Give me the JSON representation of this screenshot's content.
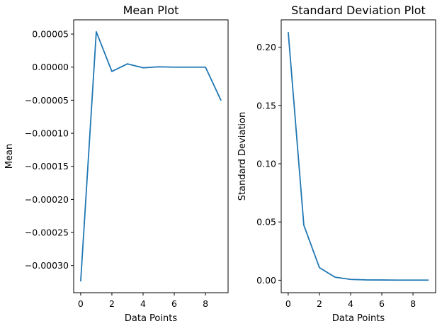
{
  "chart_data": [
    {
      "type": "line",
      "title": "Mean Plot",
      "xlabel": "Data Points",
      "ylabel": "Mean",
      "xlim": [
        -0.45,
        9.45
      ],
      "ylim": [
        -0.000341,
        7.15e-05
      ],
      "xticks": [
        0,
        2,
        4,
        6,
        8
      ],
      "xtick_labels": [
        "0",
        "2",
        "4",
        "6",
        "8"
      ],
      "yticks": [
        5e-05,
        0,
        -5e-05,
        -0.0001,
        -0.00015,
        -0.0002,
        -0.00025,
        -0.0003
      ],
      "ytick_labels": [
        "0.00005",
        "0.00000",
        "−0.00005",
        "−0.00010",
        "−0.00015",
        "−0.00020",
        "−0.00025",
        "−0.00030"
      ],
      "grid": false,
      "series": [
        {
          "color": "#1f77b4",
          "x": [
            0,
            1,
            2,
            3,
            4,
            5,
            6,
            7,
            8,
            9
          ],
          "y": [
            -0.000324,
            5.35e-05,
            -6.5e-06,
            5e-06,
            -1e-06,
            5e-07,
            0,
            0,
            0,
            -5.05e-05
          ]
        }
      ]
    },
    {
      "type": "line",
      "title": "Standard Deviation Plot",
      "xlabel": "Data Points",
      "ylabel": "Standard Deviation",
      "xlim": [
        -0.45,
        9.45
      ],
      "ylim": [
        -0.0107,
        0.2235
      ],
      "xticks": [
        0,
        2,
        4,
        6,
        8
      ],
      "xtick_labels": [
        "0",
        "2",
        "4",
        "6",
        "8"
      ],
      "yticks": [
        0,
        0.05,
        0.1,
        0.15,
        0.2
      ],
      "ytick_labels": [
        "0.00",
        "0.05",
        "0.10",
        "0.15",
        "0.20"
      ],
      "grid": false,
      "series": [
        {
          "color": "#1f77b4",
          "x": [
            0,
            1,
            2,
            3,
            4,
            5,
            6,
            7,
            8,
            9
          ],
          "y": [
            0.213,
            0.0473,
            0.0108,
            0.0026,
            0.0007,
            0.0003,
            0.0002,
            0.0001,
            0.0001,
            0.0001
          ]
        }
      ]
    }
  ]
}
